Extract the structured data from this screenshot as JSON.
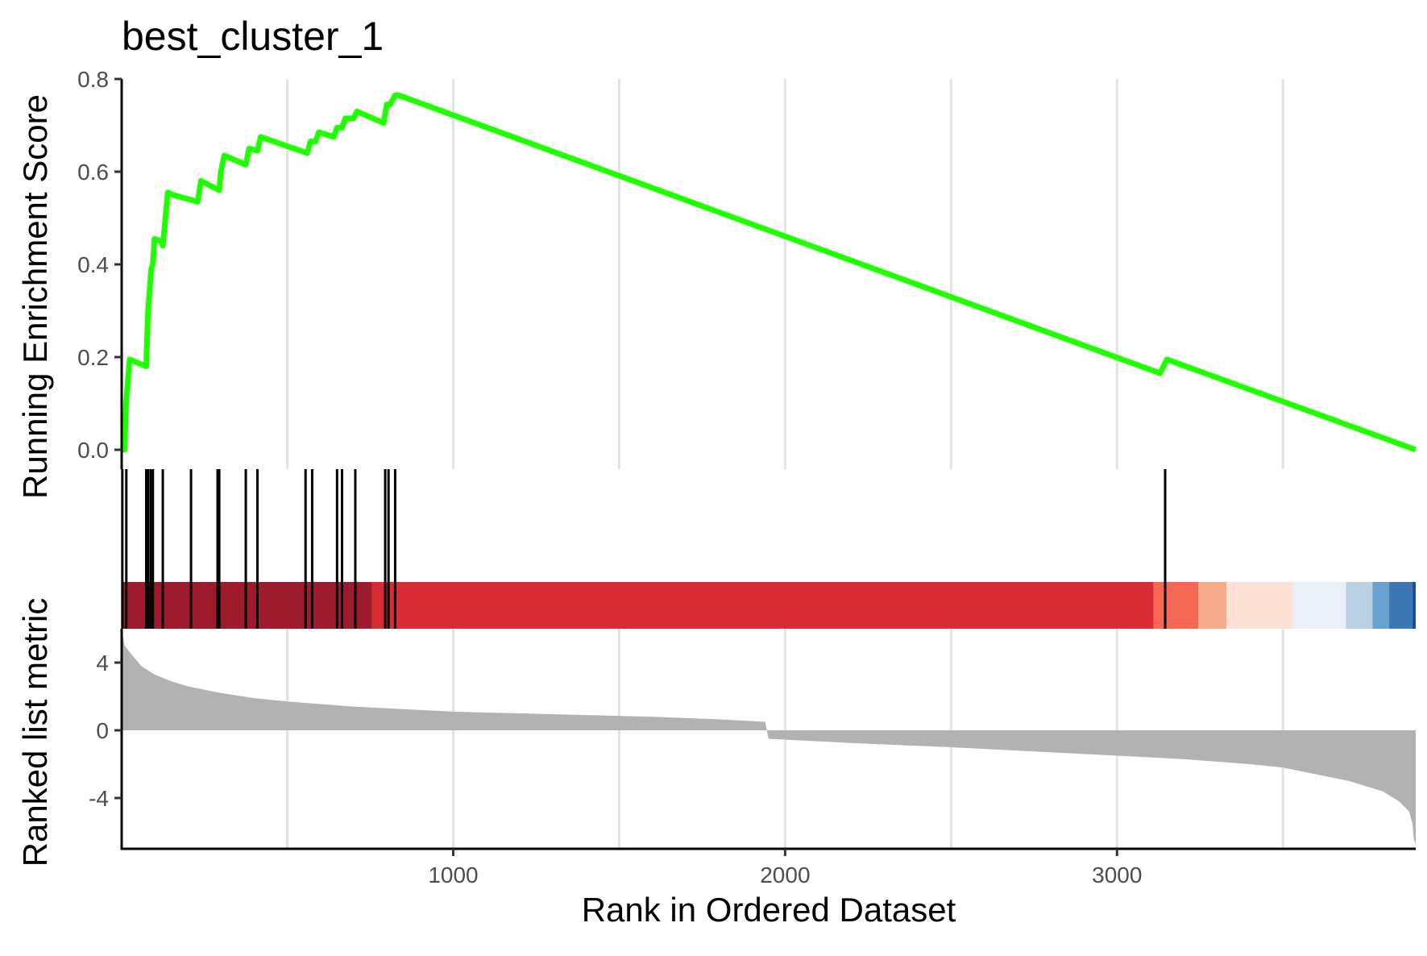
{
  "chart_data": {
    "type": "line",
    "title": "best_cluster_1",
    "xlabel": "Rank in Ordered Dataset",
    "xlim": [
      1,
      3900
    ],
    "x_ticks": [
      1000,
      2000,
      3000
    ],
    "x_tick_labels": [
      "1000",
      "2000",
      "3000"
    ],
    "x_grid": [
      500,
      1000,
      1500,
      2000,
      2500,
      3000,
      3500
    ],
    "grid": "vertical",
    "line_color": "#1fff00",
    "panels": {
      "enrichment": {
        "ylabel": "Running Enrichment Score",
        "ylim": [
          0,
          0.8
        ],
        "y_ticks": [
          0.0,
          0.2,
          0.4,
          0.6,
          0.8
        ],
        "y_tick_labels": [
          "0.0",
          "0.2",
          "0.4",
          "0.6",
          "0.8"
        ],
        "series": [
          {
            "x": [
              1,
              10,
              14,
              25,
              75,
              80,
              90,
              95,
              100,
              120,
              125,
              140,
              155,
              230,
              240,
              295,
              300,
              310,
              375,
              385,
              410,
              420,
              560,
              570,
              585,
              595,
              640,
              650,
              665,
              675,
              700,
              710,
              790,
              800,
              810,
              825,
              835,
              3130,
              3150,
              3900
            ],
            "y": [
              0.0,
              0.0,
              0.1,
              0.195,
              0.18,
              0.29,
              0.39,
              0.4,
              0.455,
              0.45,
              0.44,
              0.555,
              0.55,
              0.535,
              0.58,
              0.56,
              0.6,
              0.635,
              0.615,
              0.65,
              0.645,
              0.675,
              0.64,
              0.665,
              0.665,
              0.685,
              0.675,
              0.695,
              0.695,
              0.715,
              0.715,
              0.73,
              0.705,
              0.745,
              0.745,
              0.765,
              0.765,
              0.165,
              0.195,
              0.0
            ]
          }
        ]
      },
      "hits": {
        "positions": [
          3,
          15,
          75,
          80,
          88,
          95,
          125,
          210,
          290,
          295,
          375,
          410,
          555,
          575,
          650,
          665,
          705,
          795,
          805,
          825,
          3145
        ]
      },
      "heatmap": {
        "segments": [
          {
            "start": 1,
            "end": 755,
            "color": "#9e1a2d"
          },
          {
            "start": 755,
            "end": 3110,
            "color": "#d92d35"
          },
          {
            "start": 3110,
            "end": 3245,
            "color": "#f56753"
          },
          {
            "start": 3245,
            "end": 3330,
            "color": "#f7a98b"
          },
          {
            "start": 3330,
            "end": 3530,
            "color": "#fde1d6"
          },
          {
            "start": 3530,
            "end": 3690,
            "color": "#eaf0fa"
          },
          {
            "start": 3690,
            "end": 3770,
            "color": "#b9d1e3"
          },
          {
            "start": 3770,
            "end": 3820,
            "color": "#6aa2cf"
          },
          {
            "start": 3820,
            "end": 3890,
            "color": "#3b76b5"
          },
          {
            "start": 3890,
            "end": 3900,
            "color": "#1b4f95"
          }
        ]
      },
      "ranked": {
        "ylabel": "Ranked list metric",
        "ylim": [
          -7,
          6
        ],
        "y_ticks": [
          4,
          0,
          -4
        ],
        "y_tick_labels": [
          "4",
          "0",
          "-4"
        ],
        "fill_color": "#b2b2b2",
        "x": [
          1,
          10,
          30,
          60,
          100,
          150,
          200,
          300,
          400,
          500,
          700,
          1000,
          1300,
          1600,
          1800,
          1940,
          1950,
          2200,
          2500,
          2800,
          3000,
          3200,
          3400,
          3500,
          3600,
          3700,
          3800,
          3850,
          3880,
          3890,
          3895,
          3900
        ],
        "y": [
          6.0,
          5.0,
          4.5,
          3.8,
          3.3,
          2.9,
          2.6,
          2.2,
          1.9,
          1.7,
          1.4,
          1.1,
          0.95,
          0.8,
          0.65,
          0.5,
          -0.5,
          -0.75,
          -1.0,
          -1.3,
          -1.5,
          -1.7,
          -2.0,
          -2.2,
          -2.6,
          -3.0,
          -3.6,
          -4.2,
          -4.8,
          -5.5,
          -6.5,
          -6.7
        ]
      }
    }
  }
}
